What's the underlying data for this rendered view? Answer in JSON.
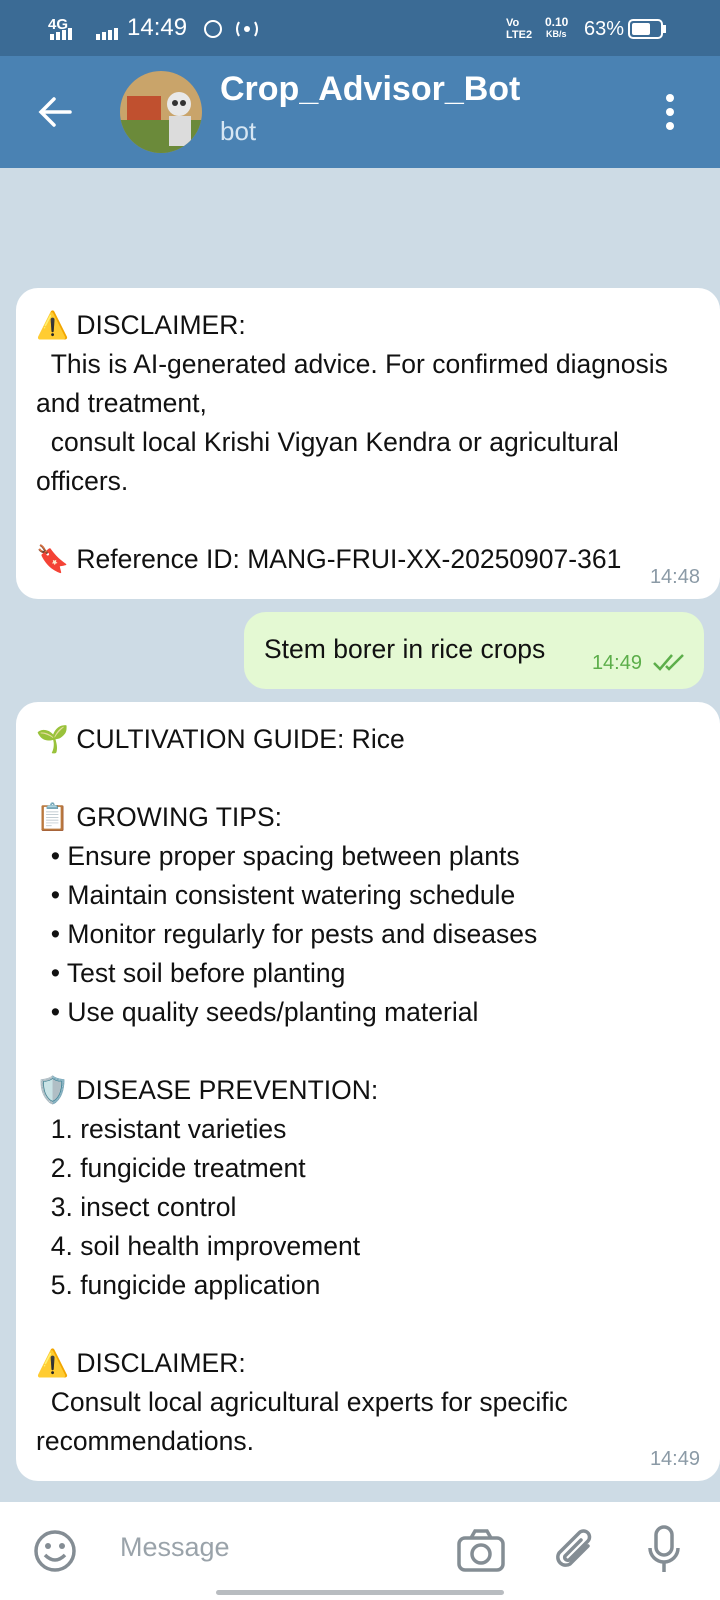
{
  "status_bar": {
    "network": "4G",
    "time": "14:49",
    "volte": "Vo LTE2",
    "speed": "0.10",
    "speed_unit": "KB/s",
    "battery": "63%"
  },
  "header": {
    "title": "Crop_Advisor_Bot",
    "subtitle": "bot"
  },
  "messages": [
    {
      "direction": "in",
      "time": "14:48",
      "blocks": [
        [
          "⚠️ DISCLAIMER:",
          "  This is AI-generated advice. For confirmed diagnosis and treatment,",
          "  consult local Krishi Vigyan Kendra or agricultural officers."
        ],
        [
          "🔖 Reference ID: MANG-FRUI-XX-20250907-361"
        ]
      ]
    },
    {
      "direction": "out",
      "time": "14:49",
      "blocks": [
        [
          "Stem borer in rice crops"
        ]
      ]
    },
    {
      "direction": "in",
      "time": "14:49",
      "blocks": [
        [
          "🌱 CULTIVATION GUIDE: Rice"
        ],
        [
          "📋 GROWING TIPS:",
          "  • Ensure proper spacing between plants",
          "  • Maintain consistent watering schedule",
          "  • Monitor regularly for pests and diseases",
          "  • Test soil before planting",
          "  • Use quality seeds/planting material"
        ],
        [
          "🛡️ DISEASE PREVENTION:",
          "  1. resistant varieties",
          "  2. fungicide treatment",
          "  3. insect control",
          "  4. soil health improvement",
          "  5. fungicide application"
        ],
        [
          "⚠️ DISCLAIMER:",
          "  Consult local agricultural experts for specific recommendations."
        ]
      ]
    }
  ],
  "input": {
    "placeholder": "Message"
  }
}
